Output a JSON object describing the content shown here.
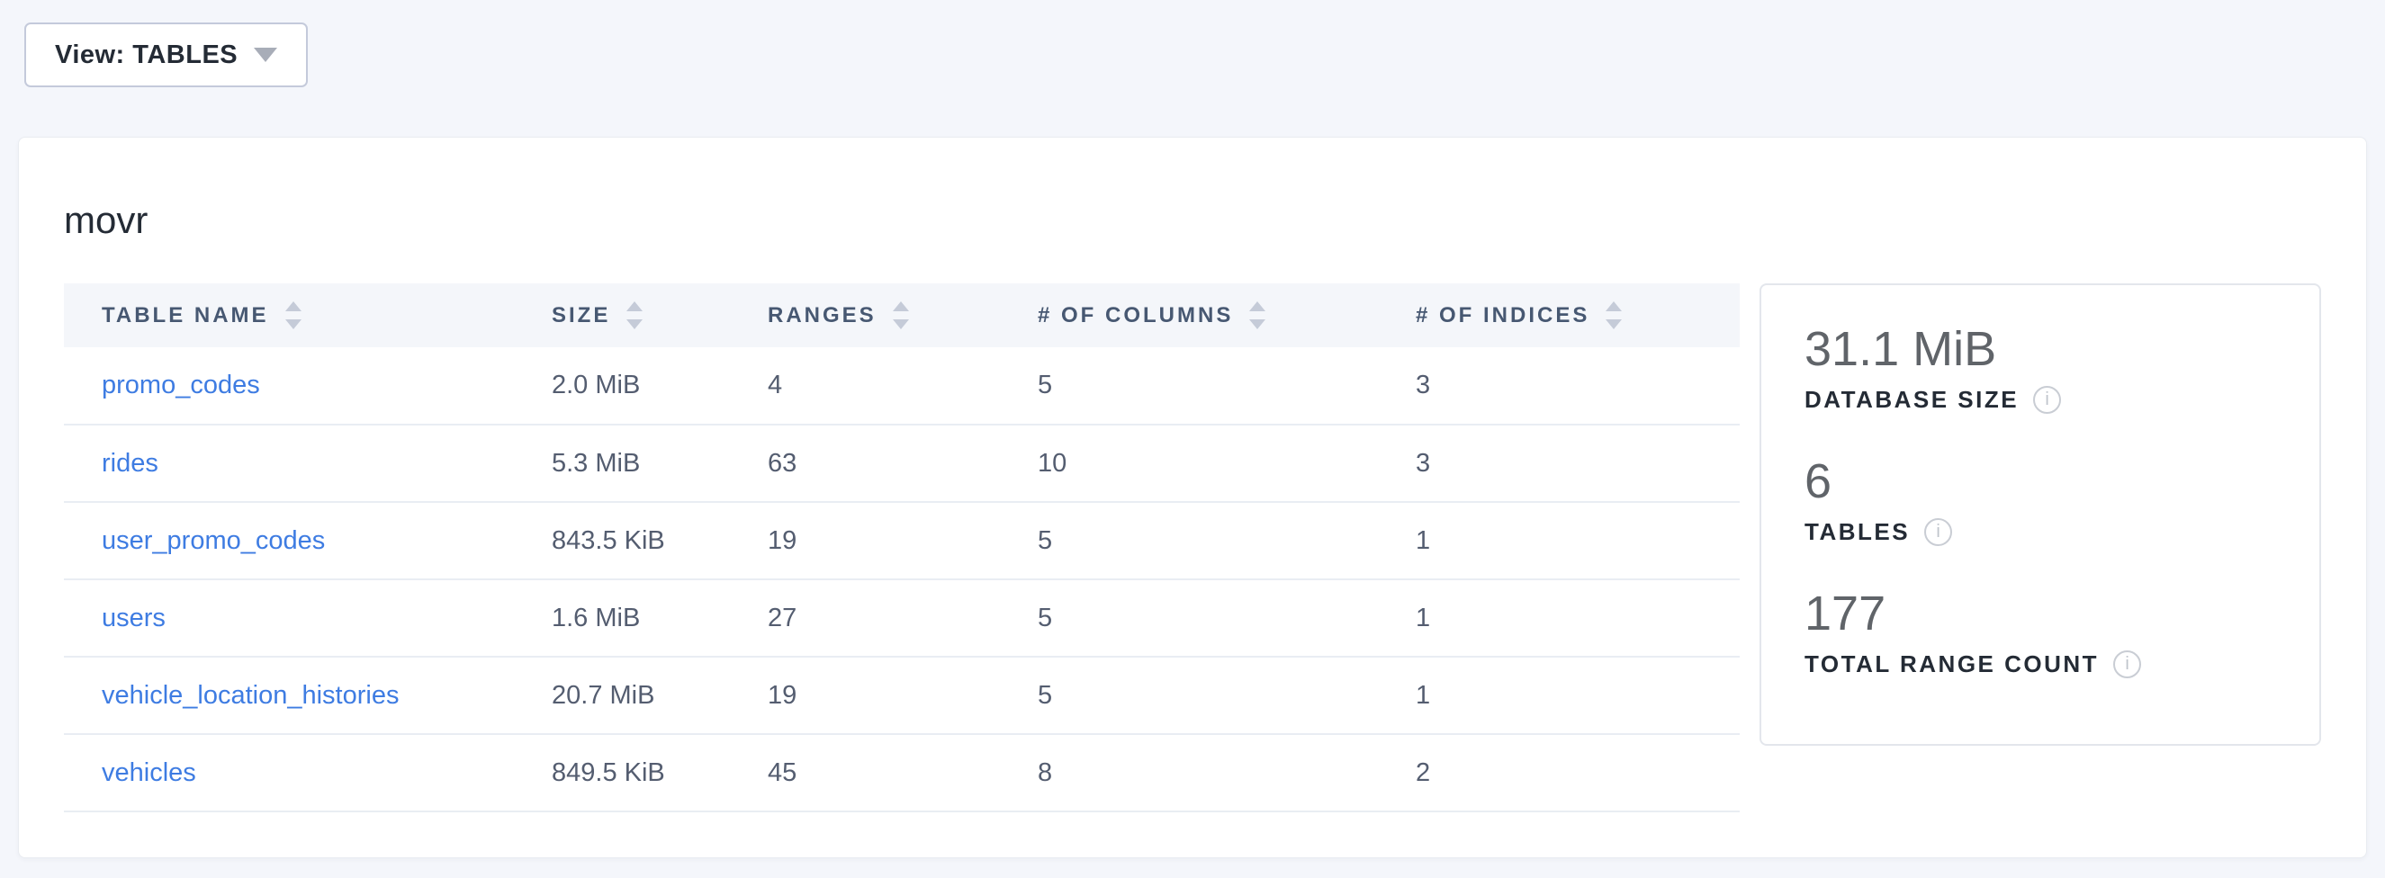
{
  "view_selector": {
    "label": "View: TABLES"
  },
  "database": {
    "title": "movr",
    "table": {
      "columns": [
        {
          "key": "name",
          "label": "TABLE NAME"
        },
        {
          "key": "size",
          "label": "SIZE"
        },
        {
          "key": "ranges",
          "label": "RANGES"
        },
        {
          "key": "columns",
          "label": "# OF COLUMNS"
        },
        {
          "key": "indices",
          "label": "# OF INDICES"
        }
      ],
      "rows": [
        {
          "name": "promo_codes",
          "size": "2.0 MiB",
          "ranges": "4",
          "columns": "5",
          "indices": "3"
        },
        {
          "name": "rides",
          "size": "5.3 MiB",
          "ranges": "63",
          "columns": "10",
          "indices": "3"
        },
        {
          "name": "user_promo_codes",
          "size": "843.5 KiB",
          "ranges": "19",
          "columns": "5",
          "indices": "1"
        },
        {
          "name": "users",
          "size": "1.6 MiB",
          "ranges": "27",
          "columns": "5",
          "indices": "1"
        },
        {
          "name": "vehicle_location_histories",
          "size": "20.7 MiB",
          "ranges": "19",
          "columns": "5",
          "indices": "1"
        },
        {
          "name": "vehicles",
          "size": "849.5 KiB",
          "ranges": "45",
          "columns": "8",
          "indices": "2"
        }
      ]
    },
    "summary": [
      {
        "value": "31.1 MiB",
        "label": "DATABASE SIZE"
      },
      {
        "value": "6",
        "label": "TABLES"
      },
      {
        "value": "177",
        "label": "TOTAL RANGE COUNT"
      }
    ]
  },
  "icons": {
    "view_caret": "chevron-down-icon",
    "sort": "sort-arrows-icon",
    "info": "info-icon"
  },
  "colors": {
    "page_background": "#f4f6fb",
    "link": "#3e7ce2",
    "header_text": "#475872",
    "stat_value": "#606469",
    "stat_label": "#242b35",
    "sort_arrow": "#c5cbd8",
    "row_border": "#e9edf3"
  }
}
